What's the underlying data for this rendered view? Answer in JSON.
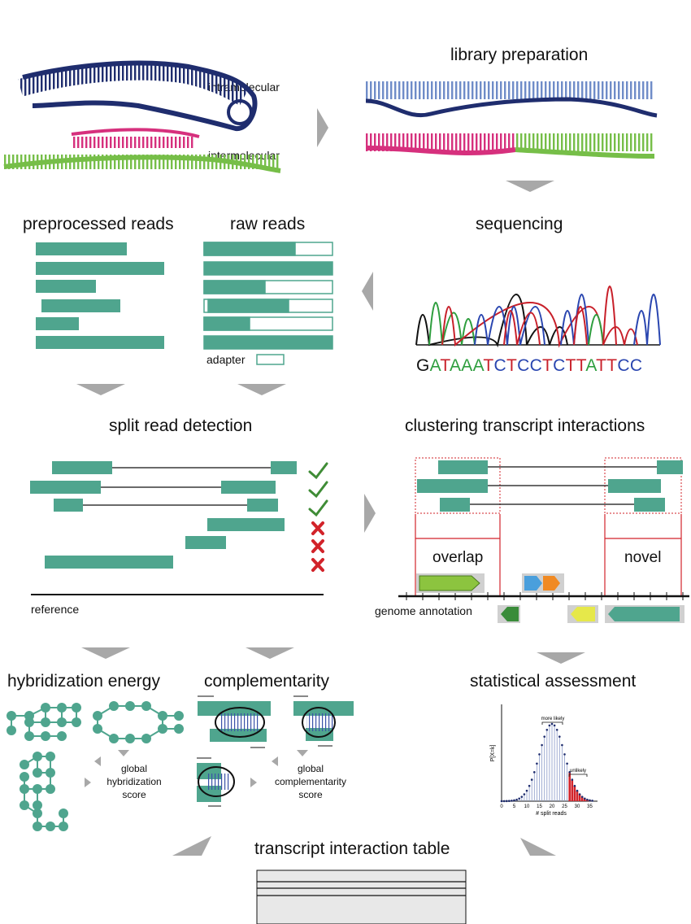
{
  "titles": {
    "library_preparation": "library preparation",
    "preprocessed_reads": "preprocessed reads",
    "raw_reads": "raw reads",
    "sequencing": "sequencing",
    "split_read_detection": "split read detection",
    "clustering": "clustering transcript interactions",
    "hybridization_energy": "hybridization energy",
    "complementarity": "complementarity",
    "statistical_assessment": "statistical assessment",
    "interaction_table": "transcript interaction table"
  },
  "labels": {
    "intramolecular": "intramolecular",
    "intermolecular": "intermolecular",
    "adapter": "adapter",
    "reference": "reference",
    "overlap": "overlap",
    "novel": "novel",
    "genome_annotation": "genome annotation",
    "global_hybridization_score": [
      "global",
      "hybridization",
      "score"
    ],
    "global_complementarity_score": [
      "global",
      "complementarity",
      "score"
    ]
  },
  "sequence": {
    "bases": [
      {
        "b": "G",
        "c": "#111111"
      },
      {
        "b": "A",
        "c": "#2e9e3e"
      },
      {
        "b": "T",
        "c": "#c8202a"
      },
      {
        "b": "A",
        "c": "#2e9e3e"
      },
      {
        "b": "A",
        "c": "#2e9e3e"
      },
      {
        "b": "A",
        "c": "#2e9e3e"
      },
      {
        "b": "T",
        "c": "#c8202a"
      },
      {
        "b": "C",
        "c": "#2a46b0"
      },
      {
        "b": "T",
        "c": "#c8202a"
      },
      {
        "b": "C",
        "c": "#2a46b0"
      },
      {
        "b": "C",
        "c": "#2a46b0"
      },
      {
        "b": "T",
        "c": "#c8202a"
      },
      {
        "b": "C",
        "c": "#2a46b0"
      },
      {
        "b": "T",
        "c": "#c8202a"
      },
      {
        "b": "T",
        "c": "#c8202a"
      },
      {
        "b": "A",
        "c": "#2e9e3e"
      },
      {
        "b": "T",
        "c": "#c8202a"
      },
      {
        "b": "T",
        "c": "#c8202a"
      },
      {
        "b": "C",
        "c": "#2a46b0"
      },
      {
        "b": "C",
        "c": "#2a46b0"
      }
    ]
  },
  "stat_plot": {
    "ylabel": "P[X=k]",
    "xlabel": "# split reads",
    "xticks": [
      "0",
      "5",
      "10",
      "15",
      "20",
      "25",
      "30",
      "35"
    ],
    "more_likely": "more likely",
    "unlikely": "unlikely"
  },
  "colors": {
    "teal": "#4fa58e",
    "navy": "#1f2d6e",
    "light_blue": "#6f8cc8",
    "magenta": "#d6307d",
    "green": "#76be48",
    "arrow_gray": "#a8a8a8",
    "check_green": "#3f8c36",
    "cross_red": "#d2232a"
  }
}
